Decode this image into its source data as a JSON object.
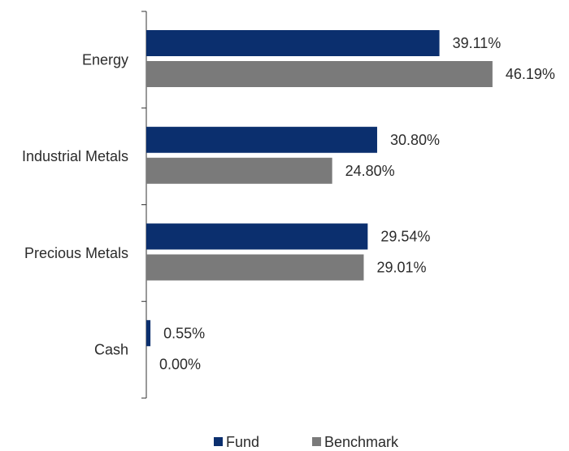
{
  "chart_data": {
    "type": "bar",
    "orientation": "horizontal",
    "categories": [
      "Energy",
      "Industrial Metals",
      "Precious Metals",
      "Cash"
    ],
    "series": [
      {
        "name": "Fund",
        "values": [
          39.11,
          30.8,
          29.54,
          0.55
        ],
        "labels": [
          "39.11%",
          "30.80%",
          "29.54%",
          "0.55%"
        ],
        "color": "#0b2f6e"
      },
      {
        "name": "Benchmark",
        "values": [
          46.19,
          24.8,
          29.01,
          0.0
        ],
        "labels": [
          "46.19%",
          "24.80%",
          "29.01%",
          "0.00%"
        ],
        "color": "#7a7a7a"
      }
    ],
    "xlim": [
      0,
      50
    ],
    "grid": false,
    "legend_position": "bottom-center"
  }
}
